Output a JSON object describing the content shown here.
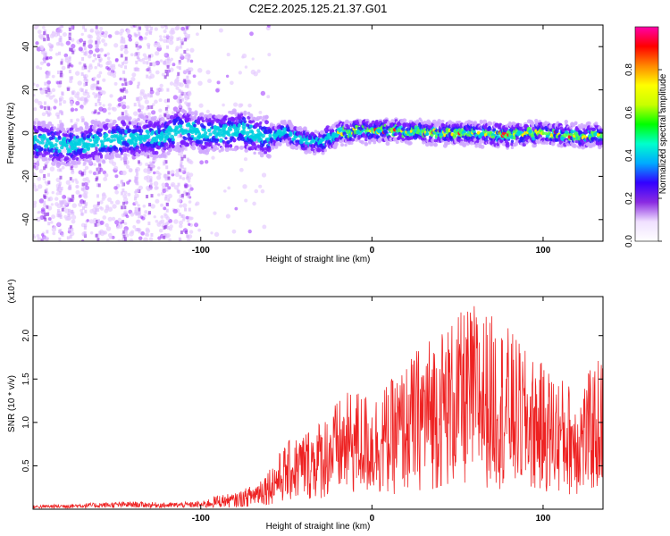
{
  "title": "C2E2.2025.125.21.37.G01",
  "chart_data": [
    {
      "type": "heatmap",
      "xlabel": "Height of straight line (km)",
      "ylabel": "Frequency (Hz)",
      "xlim": [
        -198,
        135
      ],
      "ylim": [
        -50,
        50
      ],
      "x_ticks": [
        -100,
        0,
        100
      ],
      "y_ticks": [
        -40,
        -20,
        0,
        20,
        40
      ],
      "colorbar": {
        "label": "Normalized spectral amplitude",
        "range": [
          0,
          1
        ],
        "ticks": [
          "0.0",
          "0.2",
          "0.4",
          "0.6",
          "0.8"
        ],
        "colormap": [
          "#ffffff",
          "#f0e0ff",
          "#8a2be2",
          "#3300ff",
          "#00aaff",
          "#00ffcc",
          "#00ff00",
          "#c8ff00",
          "#ffff00",
          "#ff8800",
          "#ff0000",
          "#ff00aa"
        ]
      },
      "ridge": {
        "x": [
          -198,
          -175,
          -150,
          -125,
          -110,
          -100,
          -90,
          -75,
          -60,
          -50,
          -40,
          -30,
          -20,
          -10,
          0,
          20,
          40,
          60,
          80,
          100,
          120,
          135
        ],
        "frequency": [
          -4,
          -6,
          -3,
          -2,
          2,
          0,
          0,
          1,
          -2,
          0,
          -3,
          -4,
          0,
          1,
          1,
          1,
          0,
          0,
          -1,
          0,
          -1,
          -1
        ]
      }
    },
    {
      "type": "line",
      "xlabel": "Height of straight line (km)",
      "ylabel": "SNR (10 * v/v)",
      "y_multiplier": "(x10⁴)",
      "xlim": [
        -198,
        135
      ],
      "ylim": [
        0,
        2.45
      ],
      "x_ticks": [
        -100,
        0,
        100
      ],
      "y_ticks": [
        "0.5",
        "1.0",
        "1.5",
        "2.0"
      ],
      "line_color": "#ee2222",
      "series": [
        {
          "x": [
            -198,
            -180,
            -160,
            -140,
            -120,
            -100,
            -90,
            -80,
            -70,
            -60,
            -50,
            -40,
            -30,
            -20,
            -10,
            0,
            10,
            20,
            30,
            40,
            50,
            60,
            70,
            80,
            90,
            100,
            110,
            120,
            130,
            135
          ],
          "y": [
            0.03,
            0.04,
            0.05,
            0.06,
            0.05,
            0.06,
            0.12,
            0.13,
            0.2,
            0.35,
            0.55,
            0.65,
            0.75,
            0.9,
            1.0,
            0.95,
            1.05,
            1.2,
            1.4,
            1.5,
            1.6,
            1.7,
            1.6,
            1.5,
            1.3,
            1.2,
            1.1,
            1.0,
            1.2,
            1.3
          ]
        }
      ]
    }
  ]
}
